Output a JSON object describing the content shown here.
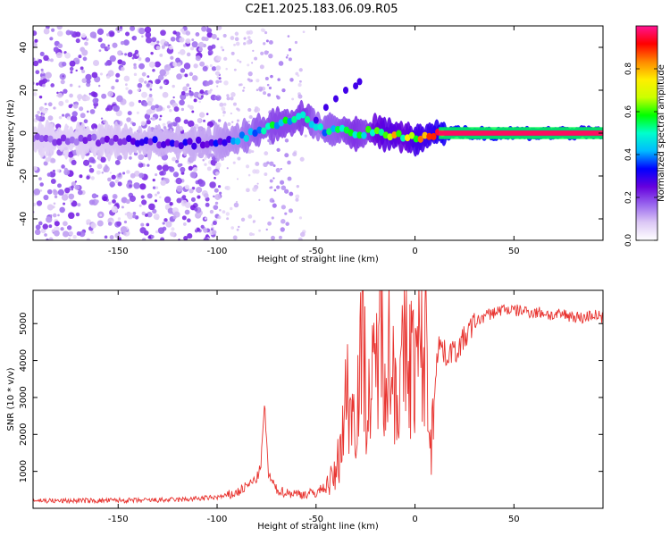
{
  "title": "C2E1.2025.183.06.09.R05",
  "chart_data": [
    {
      "type": "heatmap",
      "xlabel": "Height of straight line (km)",
      "ylabel": "Frequency (Hz)",
      "xlim": [
        -193,
        95
      ],
      "ylim": [
        -50,
        50
      ],
      "xticks": [
        -150,
        -100,
        -50,
        0,
        50
      ],
      "yticks": [
        -40,
        -20,
        0,
        20,
        40
      ],
      "xtick_labels": [
        "-150",
        "-100",
        "-50",
        "0",
        "50"
      ],
      "ytick_labels": [
        "-40",
        "-20",
        "0",
        "20",
        "40"
      ],
      "colorbar": {
        "label": "Normalized spectral amplitude",
        "range": [
          0,
          1
        ],
        "ticks": [
          0.0,
          0.2,
          0.4,
          0.6,
          0.8
        ],
        "tick_labels": [
          "0.0",
          "0.2",
          "0.4",
          "0.6",
          "0.8"
        ],
        "colormap": [
          "#ffffff",
          "#dcc8f5",
          "#9966ee",
          "#6600dd",
          "#0000ff",
          "#00bbff",
          "#00ffcc",
          "#00ff00",
          "#ccff00",
          "#ffee00",
          "#ff8800",
          "#ff0000",
          "#ff1493"
        ]
      },
      "ridge": {
        "x": [
          -193,
          -170,
          -150,
          -130,
          -115,
          -100,
          -90,
          -80,
          -70,
          -60,
          -55,
          -50,
          -45,
          -40,
          -35,
          -30,
          -25,
          -20,
          -15,
          -10,
          -5,
          0,
          5,
          10,
          20,
          40,
          60,
          80,
          95
        ],
        "y": [
          -3,
          -3,
          -4,
          -4,
          -5,
          -4,
          -3,
          1,
          4,
          6,
          8,
          3,
          1,
          2,
          1,
          -1,
          0,
          1,
          0,
          -1,
          -1,
          -3,
          -2,
          0,
          0,
          0,
          0,
          0,
          0
        ],
        "amplitude": [
          0.2,
          0.2,
          0.25,
          0.3,
          0.3,
          0.35,
          0.4,
          0.5,
          0.55,
          0.55,
          0.6,
          0.45,
          0.5,
          0.5,
          0.55,
          0.6,
          0.55,
          0.7,
          0.75,
          0.75,
          0.7,
          0.8,
          0.8,
          0.85,
          0.95,
          0.95,
          0.92,
          0.9,
          0.85
        ]
      },
      "branch": {
        "x": [
          -50,
          -45,
          -40,
          -35,
          -30,
          -28
        ],
        "y": [
          6,
          12,
          16,
          20,
          22,
          24
        ]
      },
      "grid": false
    },
    {
      "type": "line",
      "xlabel": "Height of straight line (km)",
      "ylabel": "SNR (10 * v/v)",
      "xlim": [
        -193,
        95
      ],
      "ylim": [
        0,
        5900
      ],
      "xticks": [
        -150,
        -100,
        -50,
        0,
        50
      ],
      "yticks": [
        1000,
        2000,
        3000,
        4000,
        5000
      ],
      "xtick_labels": [
        "-150",
        "-100",
        "-50",
        "0",
        "50"
      ],
      "ytick_labels": [
        "1000",
        "2000",
        "3000",
        "4000",
        "5000"
      ],
      "color": "#e8332f",
      "series": [
        {
          "x": [
            -193,
            -180,
            -170,
            -160,
            -150,
            -140,
            -130,
            -120,
            -110,
            -100,
            -95,
            -90,
            -85,
            -80,
            -78,
            -76,
            -74,
            -72,
            -70,
            -65,
            -60,
            -55,
            -50,
            -45,
            -40,
            -38,
            -36,
            -34,
            -32,
            -30,
            -28,
            -26,
            -24,
            -22,
            -20,
            -18,
            -16,
            -14,
            -12,
            -10,
            -8,
            -6,
            -4,
            -2,
            0,
            2,
            4,
            6,
            8,
            10,
            12,
            14,
            16,
            18,
            20,
            25,
            30,
            35,
            40,
            45,
            50,
            55,
            60,
            65,
            70,
            75,
            80,
            85,
            90,
            95
          ],
          "y": [
            220,
            200,
            210,
            205,
            215,
            210,
            220,
            230,
            260,
            300,
            340,
            420,
            600,
            800,
            1100,
            2800,
            900,
            700,
            500,
            420,
            400,
            380,
            420,
            600,
            900,
            1600,
            2400,
            3300,
            2500,
            2700,
            3800,
            4500,
            2600,
            3200,
            3500,
            5300,
            4100,
            4800,
            3600,
            3700,
            3000,
            3900,
            4100,
            4000,
            3900,
            4200,
            4000,
            4500,
            1300,
            3600,
            4500,
            4300,
            4100,
            4300,
            4200,
            4600,
            5000,
            5200,
            5300,
            5400,
            5350,
            5350,
            5300,
            5300,
            5200,
            5250,
            5200,
            5150,
            5250,
            5150
          ]
        }
      ],
      "grid": false
    }
  ]
}
